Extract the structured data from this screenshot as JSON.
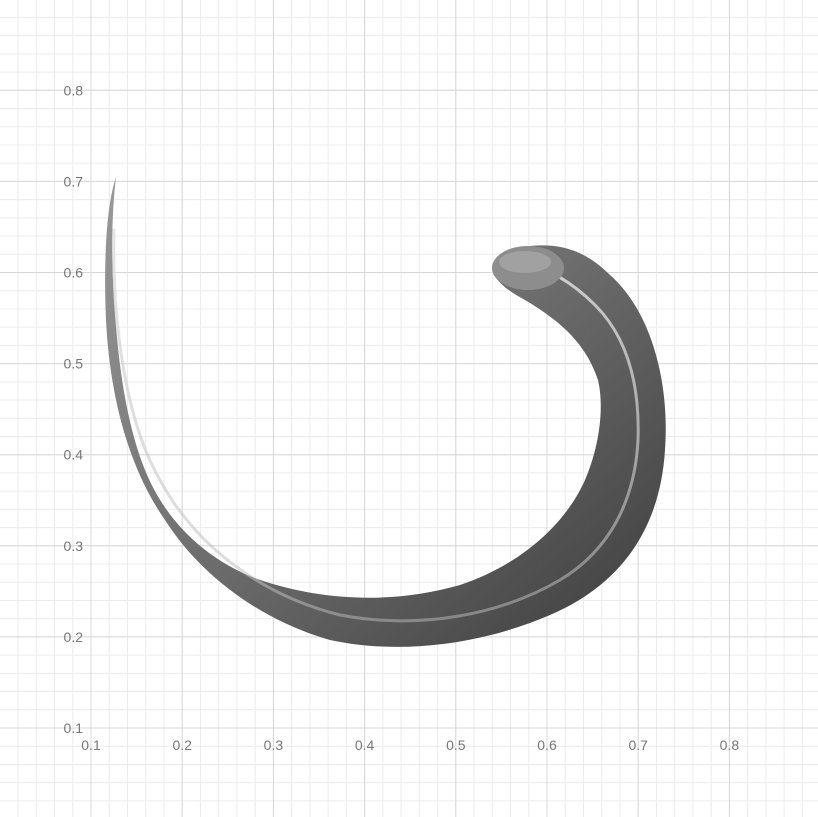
{
  "axes": {
    "x_ticks": [
      "0.1",
      "0.2",
      "0.3",
      "0.4",
      "0.5",
      "0.6",
      "0.7",
      "0.8"
    ],
    "y_ticks": [
      "0.1",
      "0.2",
      "0.3",
      "0.4",
      "0.5",
      "0.6",
      "0.7",
      "0.8"
    ],
    "grid": true,
    "minor_grid": true
  },
  "shape": {
    "name": "curved tapered stroke",
    "fill_color": "#7a7a7a",
    "highlight_color": "#d0d0d0",
    "shadow_color": "#3a3a3a"
  },
  "colors": {
    "major_grid": "#d8d8d8",
    "minor_grid": "#ececec",
    "tick_text": "#777777"
  }
}
